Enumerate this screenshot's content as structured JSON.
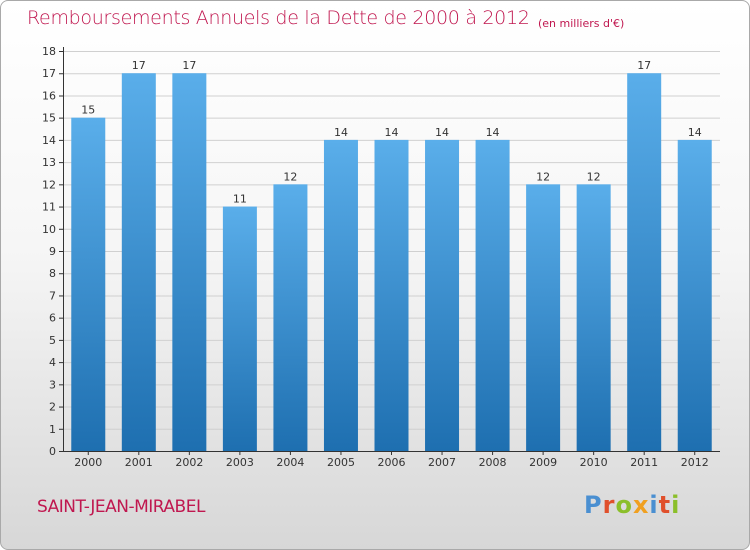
{
  "title": "Remboursements Annuels de la Dette de 2000 à 2012",
  "subtitle": "(en milliers d'€)",
  "commune": "SAINT-JEAN-MIRABEL",
  "logo": {
    "text": "Proxiti",
    "colors": [
      "#4a8fd1",
      "#e0502c",
      "#8bbf2a",
      "#f0a020",
      "#4a8fd1",
      "#e0502c",
      "#8bbf2a"
    ]
  },
  "colors": {
    "title": "#c0174f",
    "bar_top": "#5aaeea",
    "bar_bottom": "#1e6fb0",
    "grid": "#d0d0d0"
  },
  "chart_data": {
    "type": "bar",
    "title": "Remboursements Annuels de la Dette de 2000 à 2012",
    "ylabel": "en milliers d'€",
    "xlabel": "",
    "categories": [
      "2000",
      "2001",
      "2002",
      "2003",
      "2004",
      "2005",
      "2006",
      "2007",
      "2008",
      "2009",
      "2010",
      "2011",
      "2012"
    ],
    "values": [
      15,
      17,
      17,
      11,
      12,
      14,
      14,
      14,
      14,
      12,
      12,
      17,
      14
    ],
    "ylim": [
      0,
      18
    ],
    "yticks": [
      0,
      1,
      2,
      3,
      4,
      5,
      6,
      7,
      8,
      9,
      10,
      11,
      12,
      13,
      14,
      15,
      16,
      17,
      18
    ],
    "grid": true,
    "legend": "none"
  }
}
